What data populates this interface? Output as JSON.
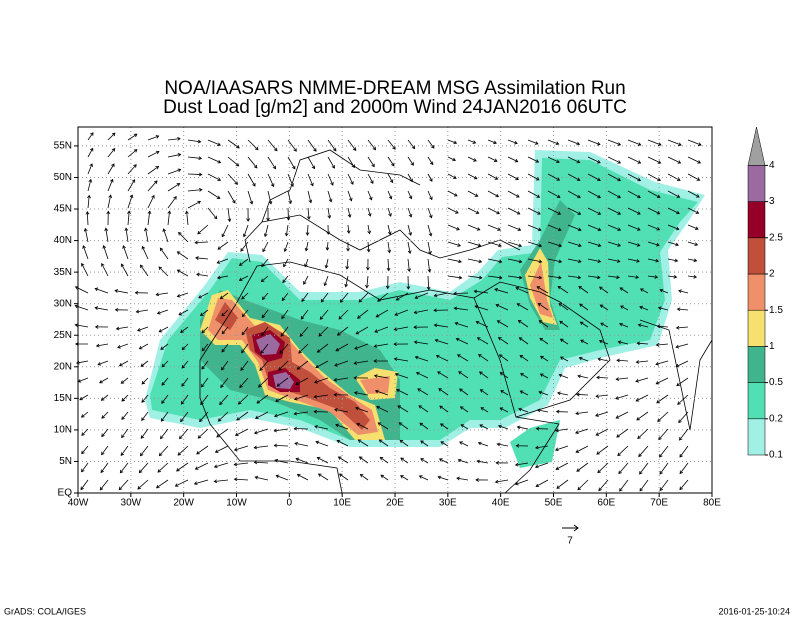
{
  "title": [
    "NOA/IAASARS NMME-DREAM MSG Assimilation Run",
    "Dust Load [g/m2] and 2000m Wind 24JAN2016 06UTC"
  ],
  "map": {
    "xlim": [
      -40,
      80
    ],
    "ylim": [
      0,
      58
    ],
    "xticks": [
      {
        "value": -40,
        "label": "40W"
      },
      {
        "value": -30,
        "label": "30W"
      },
      {
        "value": -20,
        "label": "20W"
      },
      {
        "value": -10,
        "label": "10W"
      },
      0,
      {
        "value": 10,
        "label": "10E"
      },
      {
        "value": 20,
        "label": "20E"
      },
      {
        "value": 30,
        "label": "30E"
      },
      {
        "value": 40,
        "label": "40E"
      },
      {
        "value": 50,
        "label": "50E"
      },
      {
        "value": 60,
        "label": "60E"
      },
      {
        "value": 70,
        "label": "70E"
      },
      {
        "value": 80,
        "label": "80E"
      }
    ],
    "yticks": [
      {
        "value": 0,
        "label": "EQ"
      },
      {
        "value": 5,
        "label": "5N"
      },
      {
        "value": 10,
        "label": "10N"
      },
      {
        "value": 15,
        "label": "15N"
      },
      {
        "value": 20,
        "label": "20N"
      },
      {
        "value": 25,
        "label": "25N"
      },
      {
        "value": 30,
        "label": "30N"
      },
      {
        "value": 35,
        "label": "35N"
      },
      {
        "value": 40,
        "label": "40N"
      },
      {
        "value": 45,
        "label": "45N"
      },
      {
        "value": 50,
        "label": "50N"
      },
      {
        "value": 55,
        "label": "55N"
      }
    ],
    "grid": true
  },
  "colorbar": {
    "levels": [
      0.1,
      0.2,
      0.5,
      1,
      1.5,
      2,
      2.5,
      3,
      4
    ],
    "colors": [
      "#a0f0e6",
      "#50e0b4",
      "#40b48c",
      "#f5e070",
      "#f0906a",
      "#c0503c",
      "#960028",
      "#9a6aa0"
    ],
    "over_color": "#a0a0a0"
  },
  "wind_reference": "7",
  "footer": {
    "left": "GrADS: COLA/IGES",
    "right": "2016-01-25-10:24"
  }
}
